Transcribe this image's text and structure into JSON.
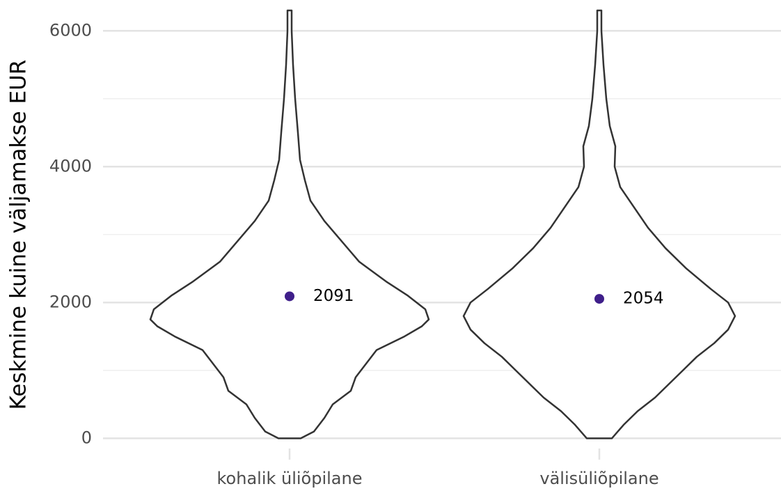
{
  "chart_data": {
    "type": "violin",
    "ylabel": "Keskmine kuine väljamakse EUR",
    "categories": [
      "kohalik üliõpilane",
      "välisüliõpilane"
    ],
    "values": [
      2091,
      2054
    ],
    "color": "#3f1f8a",
    "violins": [
      {
        "y": [
          0,
          100,
          300,
          500,
          700,
          900,
          1100,
          1300,
          1500,
          1650,
          1750,
          1900,
          2100,
          2300,
          2600,
          2900,
          3200,
          3500,
          3800,
          4100,
          4500,
          5000,
          5500,
          6000,
          6300
        ],
        "density": [
          0.08,
          0.175,
          0.25,
          0.31,
          0.44,
          0.475,
          0.55,
          0.625,
          0.825,
          0.95,
          1,
          0.975,
          0.85,
          0.7,
          0.5,
          0.375,
          0.25,
          0.15,
          0.11,
          0.075,
          0.06,
          0.04,
          0.025,
          0.015,
          0.015
        ]
      },
      {
        "y": [
          0,
          200,
          400,
          600,
          800,
          1000,
          1200,
          1400,
          1600,
          1800,
          2000,
          2200,
          2500,
          2800,
          3100,
          3400,
          3700,
          4000,
          4300,
          4600,
          5000,
          5500,
          6000,
          6300
        ],
        "density": [
          0.09,
          0.175,
          0.275,
          0.4,
          0.5,
          0.6,
          0.7,
          0.825,
          0.925,
          0.975,
          0.925,
          0.8,
          0.625,
          0.475,
          0.35,
          0.25,
          0.15,
          0.11,
          0.115,
          0.075,
          0.05,
          0.03,
          0.015,
          0.015
        ]
      }
    ],
    "ylim": [
      -150,
      6300
    ],
    "yticks": [
      0,
      2000,
      4000,
      6000
    ],
    "yminor": [
      1000,
      3000,
      5000
    ],
    "grid": true
  }
}
